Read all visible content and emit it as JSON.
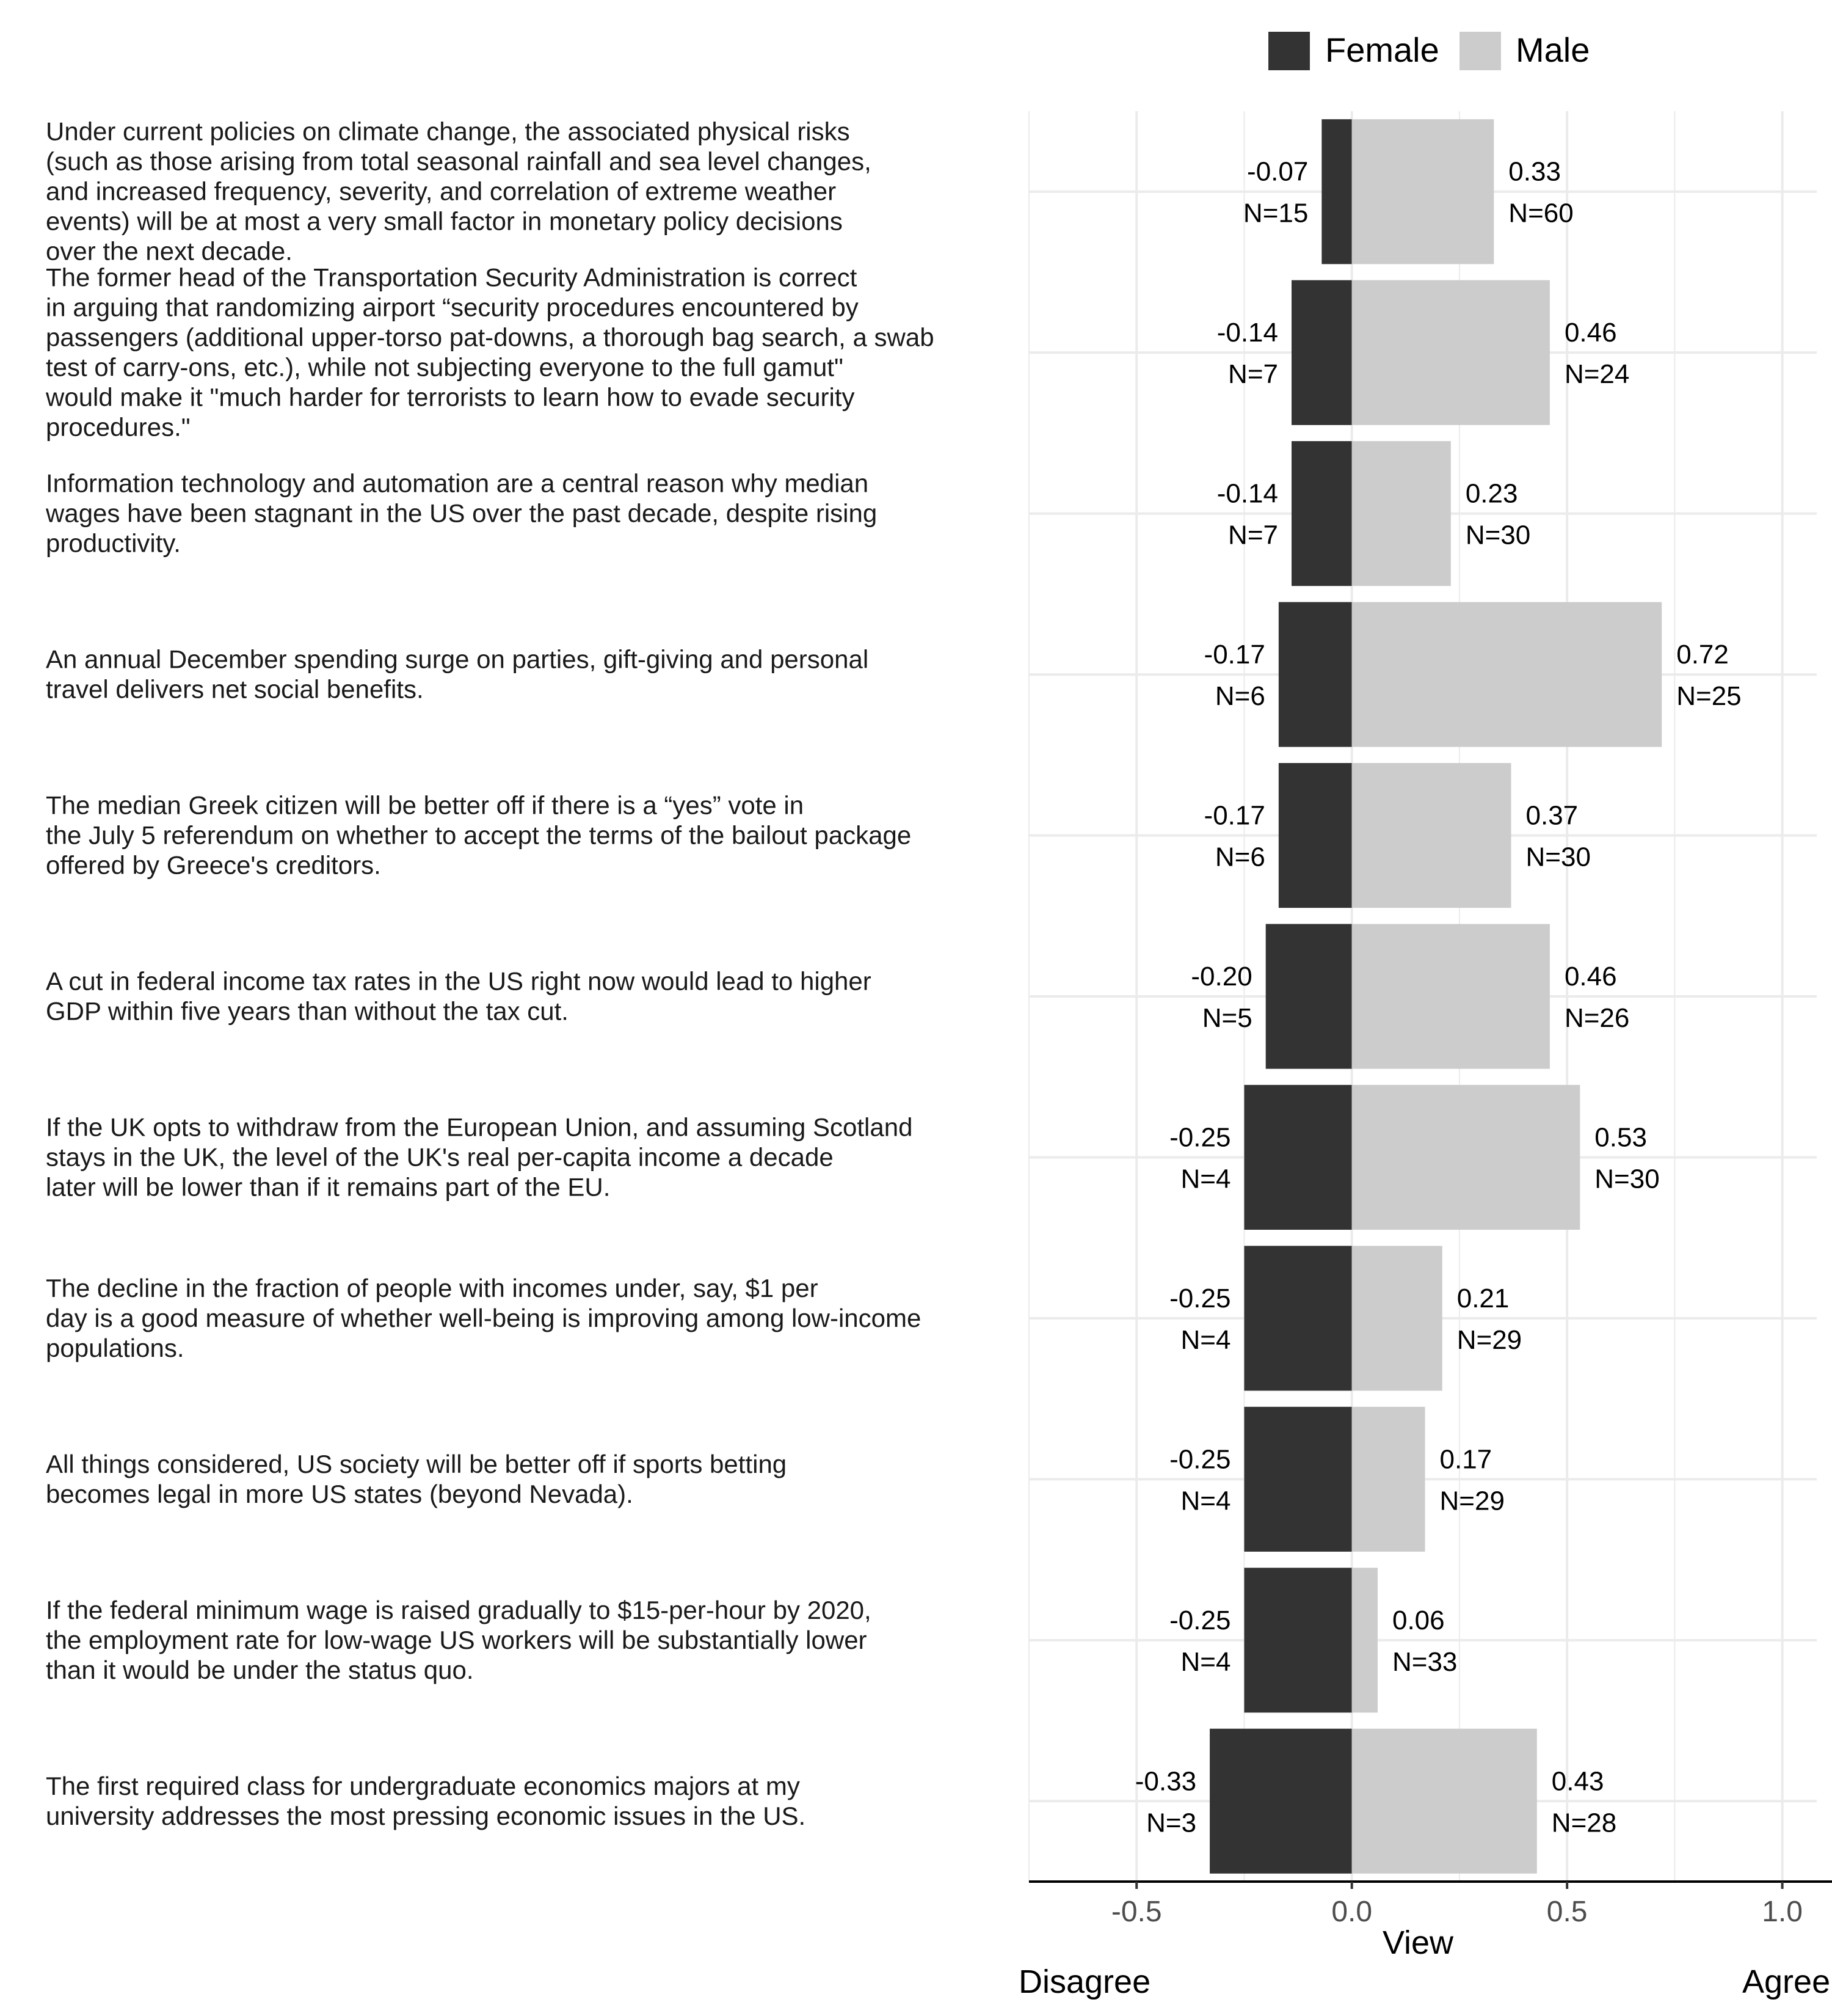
{
  "chart_data": {
    "type": "bar",
    "orientation": "horizontal",
    "stacked": "diverging",
    "xlabel": "View",
    "xlim": [
      -0.75,
      1.08
    ],
    "xticks": [
      -0.5,
      0.0,
      0.5,
      1.0
    ],
    "xtick_labels": [
      "-0.5",
      "0.0",
      "0.5",
      "1.0"
    ],
    "scale_ends": {
      "left": "Disagree",
      "right": "Agree"
    },
    "legend": {
      "position": "top-right",
      "entries": [
        "Female",
        "Male"
      ]
    },
    "colors": {
      "Female": "#333333",
      "Male": "#cccccc",
      "grid": "#ebebeb",
      "axis": "#000000",
      "tick_text": "#4d4d4d"
    },
    "grid": true,
    "categories": [
      [
        "Under current policies on climate change, the associated physical risks",
        "(such as those arising from total seasonal rainfall and sea level changes,",
        "and increased frequency, severity, and correlation of extreme weather",
        "events) will be at most a very small factor in monetary policy decisions",
        "over the next decade."
      ],
      [
        "The former head of the Transportation Security Administration is correct",
        "in arguing that randomizing airport “security procedures encountered by",
        "passengers (additional upper-torso pat-downs, a thorough bag search, a swab",
        "test of carry-ons, etc.), while not subjecting everyone to the full gamut\"",
        "would make it \"much harder for terrorists to learn how to evade security",
        "procedures.\""
      ],
      [
        "Information technology and automation are a central reason why median",
        "wages have been stagnant in the US over the past decade, despite rising",
        "productivity."
      ],
      [
        "An annual December spending surge on parties, gift-giving and personal",
        "travel delivers net social benefits."
      ],
      [
        "The median Greek citizen will be better off if there is a “yes” vote in",
        "the July 5 referendum on whether to accept the terms of the bailout package",
        "offered by Greece's creditors."
      ],
      [
        "A cut in federal income tax rates in the US right now would lead to higher",
        "GDP within five years than without the tax cut."
      ],
      [
        "If the UK opts to withdraw from the European Union, and assuming Scotland",
        "stays in the UK, the level of the UK's real per-capita income a decade",
        "later will be lower than if it remains part of the EU."
      ],
      [
        "The decline in the fraction of people with incomes under, say, $1 per",
        "day is a good measure of whether well-being is improving among low-income",
        "populations."
      ],
      [
        "All things considered, US society will be better off if sports betting",
        "becomes legal in more US states (beyond Nevada)."
      ],
      [
        "If the federal minimum wage is raised gradually to $15-per-hour by 2020,",
        "the employment rate for low-wage US workers will be substantially lower",
        "than it would be under the status quo."
      ],
      [
        "The first required class for undergraduate economics majors at my",
        "university addresses the most pressing economic issues in the US."
      ]
    ],
    "series": [
      {
        "name": "Female",
        "values": [
          -0.07,
          -0.14,
          -0.14,
          -0.17,
          -0.17,
          -0.2,
          -0.25,
          -0.25,
          -0.25,
          -0.25,
          -0.33
        ],
        "value_labels": [
          "-0.07",
          "-0.14",
          "-0.14",
          "-0.17",
          "-0.17",
          "-0.20",
          "-0.25",
          "-0.25",
          "-0.25",
          "-0.25",
          "-0.33"
        ],
        "n_labels": [
          "N=15",
          "N=7",
          "N=7",
          "N=6",
          "N=6",
          "N=5",
          "N=4",
          "N=4",
          "N=4",
          "N=4",
          "N=3"
        ]
      },
      {
        "name": "Male",
        "values": [
          0.33,
          0.46,
          0.23,
          0.72,
          0.37,
          0.46,
          0.53,
          0.21,
          0.17,
          0.06,
          0.43
        ],
        "value_labels": [
          "0.33",
          "0.46",
          "0.23",
          "0.72",
          "0.37",
          "0.46",
          "0.53",
          "0.21",
          "0.17",
          "0.06",
          "0.43"
        ],
        "n_labels": [
          "N=60",
          "N=24",
          "N=30",
          "N=25",
          "N=30",
          "N=26",
          "N=30",
          "N=29",
          "N=29",
          "N=33",
          "N=28"
        ]
      }
    ]
  }
}
